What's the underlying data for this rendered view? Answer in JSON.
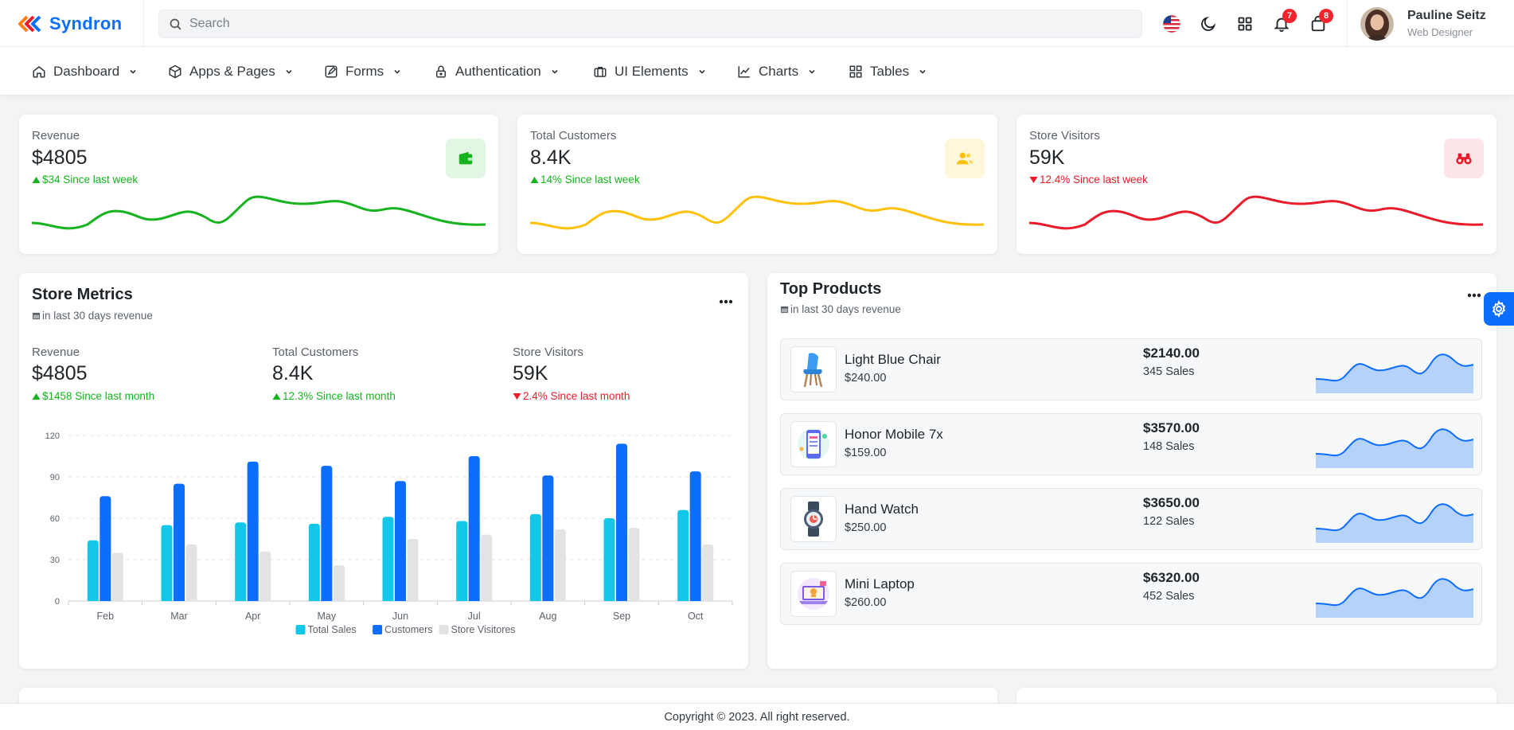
{
  "brand": {
    "name": "Syndron"
  },
  "search": {
    "placeholder": "Search"
  },
  "header": {
    "notifications_count": "7",
    "cart_count": "8",
    "user_name": "Pauline Seitz",
    "user_role": "Web Designer"
  },
  "nav": [
    {
      "label": "Dashboard",
      "icon": "home-icon"
    },
    {
      "label": "Apps & Pages",
      "icon": "cube-icon"
    },
    {
      "label": "Forms",
      "icon": "edit-icon"
    },
    {
      "label": "Authentication",
      "icon": "lock-icon"
    },
    {
      "label": "UI Elements",
      "icon": "briefcase-icon"
    },
    {
      "label": "Charts",
      "icon": "line-chart-icon"
    },
    {
      "label": "Tables",
      "icon": "grid-icon"
    }
  ],
  "stats": [
    {
      "label": "Revenue",
      "value": "$4805",
      "change": "$34 Since last week",
      "trend": "up",
      "color": "#15b41f",
      "icon": "wallet-icon",
      "icon_bg": "#e2f6e3"
    },
    {
      "label": "Total Customers",
      "value": "8.4K",
      "change": "14% Since last week",
      "trend": "up",
      "color": "#ffc107",
      "icon": "users-icon",
      "icon_bg": "#fff7dc"
    },
    {
      "label": "Store Visitors",
      "value": "59K",
      "change": "12.4% Since last week",
      "trend": "down",
      "color": "#ea1b2b",
      "icon": "binoculars-icon",
      "icon_bg": "#fde4e6"
    }
  ],
  "store_metrics": {
    "title": "Store Metrics",
    "subtitle": "in last 30 days revenue",
    "metrics": [
      {
        "label": "Revenue",
        "value": "$4805",
        "change": "$1458 Since last month",
        "trend": "up"
      },
      {
        "label": "Total Customers",
        "value": "8.4K",
        "change": "12.3% Since last month",
        "trend": "up"
      },
      {
        "label": "Store Visitors",
        "value": "59K",
        "change": "2.4% Since last month",
        "trend": "down"
      }
    ]
  },
  "chart_data": {
    "type": "bar",
    "title": "",
    "xlabel": "",
    "ylabel": "",
    "categories": [
      "Feb",
      "Mar",
      "Apr",
      "May",
      "Jun",
      "Jul",
      "Aug",
      "Sep",
      "Oct"
    ],
    "ylim": [
      0,
      120
    ],
    "yticks": [
      "0",
      "30",
      "60",
      "90",
      "120"
    ],
    "grid": true,
    "legend_position": "bottom",
    "series": [
      {
        "name": "Total Sales",
        "color": "#12c7e8",
        "values": [
          44,
          55,
          57,
          56,
          61,
          58,
          63,
          60,
          66
        ]
      },
      {
        "name": "Customers",
        "color": "#0d6efd",
        "values": [
          76,
          85,
          101,
          98,
          87,
          105,
          91,
          114,
          94
        ]
      },
      {
        "name": "Store Visitores",
        "color": "#e1e3e5",
        "values": [
          35,
          41,
          36,
          26,
          45,
          48,
          52,
          53,
          41
        ]
      }
    ]
  },
  "top_products": {
    "title": "Top Products",
    "subtitle": "in last 30 days revenue",
    "items": [
      {
        "name": "Light Blue Chair",
        "price": "$240.00",
        "total": "$2140.00",
        "sales": "345 Sales",
        "icon": "chair-icon"
      },
      {
        "name": "Honor Mobile 7x",
        "price": "$159.00",
        "total": "$3570.00",
        "sales": "148 Sales",
        "icon": "mobile-icon"
      },
      {
        "name": "Hand Watch",
        "price": "$250.00",
        "total": "$3650.00",
        "sales": "122 Sales",
        "icon": "watch-icon"
      },
      {
        "name": "Mini Laptop",
        "price": "$260.00",
        "total": "$6320.00",
        "sales": "452 Sales",
        "icon": "laptop-icon"
      }
    ]
  },
  "footer": {
    "text": "Copyright © 2023. All right reserved."
  }
}
